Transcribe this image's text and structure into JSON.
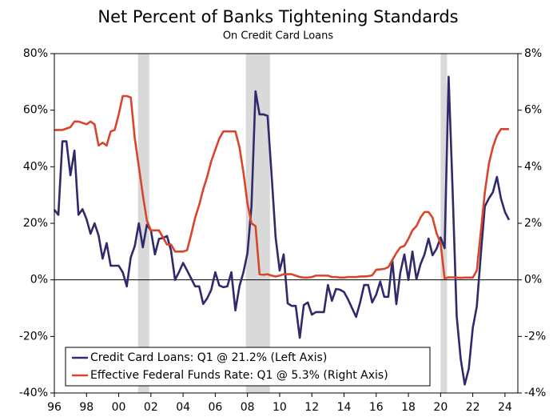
{
  "chart_data": {
    "type": "line",
    "title": "Net Percent of Banks Tightening Standards",
    "subtitle": "On Credit Card Loans",
    "x": [
      1996,
      1996.25,
      1996.5,
      1996.75,
      1997,
      1997.25,
      1997.5,
      1997.75,
      1998,
      1998.25,
      1998.5,
      1998.75,
      1999,
      1999.25,
      1999.5,
      1999.75,
      2000,
      2000.25,
      2000.5,
      2000.75,
      2001,
      2001.25,
      2001.5,
      2001.75,
      2002,
      2002.25,
      2002.5,
      2002.75,
      2003,
      2003.25,
      2003.5,
      2003.75,
      2004,
      2004.25,
      2004.5,
      2004.75,
      2005,
      2005.25,
      2005.5,
      2005.75,
      2006,
      2006.25,
      2006.5,
      2006.75,
      2007,
      2007.25,
      2007.5,
      2007.75,
      2008,
      2008.25,
      2008.5,
      2008.75,
      2009,
      2009.25,
      2009.5,
      2009.75,
      2010,
      2010.25,
      2010.5,
      2010.75,
      2011,
      2011.25,
      2011.5,
      2011.75,
      2012,
      2012.25,
      2012.5,
      2012.75,
      2013,
      2013.25,
      2013.5,
      2013.75,
      2014,
      2014.25,
      2014.5,
      2014.75,
      2015,
      2015.25,
      2015.5,
      2015.75,
      2016,
      2016.25,
      2016.5,
      2016.75,
      2017,
      2017.25,
      2017.5,
      2017.75,
      2018,
      2018.25,
      2018.5,
      2018.75,
      2019,
      2019.25,
      2019.5,
      2019.75,
      2020,
      2020.25,
      2020.5,
      2020.75,
      2021,
      2021.25,
      2021.5,
      2021.75,
      2022,
      2022.25,
      2022.5,
      2022.75,
      2023,
      2023.25,
      2023.5,
      2023.75,
      2024,
      2024.25
    ],
    "series": [
      {
        "name": "Credit Card Loans: Q1 @ 21.2% (Left Axis)",
        "color": "#2e2a6b",
        "axis": "y",
        "values": [
          24.8,
          23,
          49,
          49,
          37,
          45.7,
          23,
          25,
          21.5,
          16.3,
          20,
          15.7,
          7.5,
          13,
          5,
          5,
          5,
          2.7,
          -2.3,
          8,
          12,
          20,
          11.5,
          19.5,
          17.5,
          9,
          14.5,
          14.8,
          15.5,
          10.4,
          0,
          2.8,
          6,
          3.3,
          0.5,
          -2.3,
          -2.3,
          -8.5,
          -6.5,
          -3.5,
          2.7,
          -2,
          -2.6,
          -2.3,
          2.7,
          -10.8,
          -2.3,
          2.7,
          9.5,
          26,
          66.7,
          58.5,
          58.5,
          58,
          37,
          15,
          3.3,
          9,
          -8.3,
          -9.2,
          -9.2,
          -20.5,
          -8.9,
          -8,
          -12.3,
          -11.4,
          -11.4,
          -11.4,
          -1.8,
          -7.4,
          -3.2,
          -3.5,
          -4.3,
          -6.9,
          -10,
          -13.1,
          -8,
          -1.8,
          -1.8,
          -8,
          -5.2,
          -0.6,
          -6,
          -6,
          7,
          -8.6,
          2.7,
          9,
          0,
          10,
          0.2,
          5.5,
          9,
          14.6,
          8.7,
          11,
          15,
          11.2,
          71.8,
          31,
          -12.8,
          -28,
          -37,
          -31.5,
          -17,
          -9.4,
          9,
          26,
          28.8,
          31,
          36.4,
          28.8,
          24,
          21.2
        ]
      },
      {
        "name": "Effective Federal Funds Rate: Q1 @ 5.3% (Right Axis)",
        "color": "#d9442a",
        "axis": "y2",
        "values": [
          5.3,
          5.3,
          5.3,
          5.35,
          5.4,
          5.6,
          5.6,
          5.55,
          5.5,
          5.6,
          5.5,
          4.75,
          4.85,
          4.75,
          5.25,
          5.3,
          5.85,
          6.5,
          6.5,
          6.45,
          5.0,
          4.0,
          3.0,
          2.1,
          1.75,
          1.75,
          1.75,
          1.5,
          1.25,
          1.25,
          1.0,
          1.0,
          1.0,
          1.05,
          1.6,
          2.2,
          2.65,
          3.2,
          3.65,
          4.2,
          4.6,
          5.0,
          5.25,
          5.25,
          5.25,
          5.25,
          4.7,
          3.8,
          2.7,
          2.0,
          1.9,
          0.2,
          0.18,
          0.2,
          0.15,
          0.12,
          0.15,
          0.2,
          0.2,
          0.2,
          0.15,
          0.1,
          0.08,
          0.08,
          0.1,
          0.15,
          0.15,
          0.15,
          0.15,
          0.1,
          0.1,
          0.08,
          0.08,
          0.1,
          0.1,
          0.1,
          0.12,
          0.12,
          0.13,
          0.16,
          0.36,
          0.37,
          0.39,
          0.45,
          0.7,
          0.95,
          1.15,
          1.2,
          1.45,
          1.75,
          1.9,
          2.2,
          2.4,
          2.4,
          2.2,
          1.65,
          1.3,
          0.05,
          0.09,
          0.09,
          0.08,
          0.07,
          0.08,
          0.08,
          0.08,
          0.33,
          1.7,
          3.1,
          4.1,
          4.7,
          5.1,
          5.33,
          5.33,
          5.33
        ]
      }
    ],
    "recessions": [
      [
        2001.2,
        2001.9
      ],
      [
        2007.9,
        2009.4
      ],
      [
        2020.0,
        2020.4
      ]
    ],
    "recession_color": "#d9d9d9",
    "xlim": [
      1996,
      2024.8
    ],
    "xticks": [
      {
        "value": 1996,
        "label": "96"
      },
      {
        "value": 1998,
        "label": "98"
      },
      {
        "value": 2000,
        "label": "00"
      },
      {
        "value": 2002,
        "label": "02"
      },
      {
        "value": 2004,
        "label": "04"
      },
      {
        "value": 2006,
        "label": "06"
      },
      {
        "value": 2008,
        "label": "08"
      },
      {
        "value": 2010,
        "label": "10"
      },
      {
        "value": 2012,
        "label": "12"
      },
      {
        "value": 2014,
        "label": "14"
      },
      {
        "value": 2016,
        "label": "16"
      },
      {
        "value": 2018,
        "label": "18"
      },
      {
        "value": 2020,
        "label": "20"
      },
      {
        "value": 2022,
        "label": "22"
      },
      {
        "value": 2024,
        "label": "24"
      }
    ],
    "ylim": [
      -40,
      80
    ],
    "yticks": [
      {
        "value": -40,
        "label": "-40%"
      },
      {
        "value": -20,
        "label": "-20%"
      },
      {
        "value": 0,
        "label": "0%"
      },
      {
        "value": 20,
        "label": "20%"
      },
      {
        "value": 40,
        "label": "40%"
      },
      {
        "value": 60,
        "label": "60%"
      },
      {
        "value": 80,
        "label": "80%"
      }
    ],
    "y2lim": [
      -4,
      8
    ],
    "y2ticks": [
      {
        "value": -4,
        "label": "-4%"
      },
      {
        "value": -2,
        "label": "-2%"
      },
      {
        "value": 0,
        "label": "0%"
      },
      {
        "value": 2,
        "label": "2%"
      },
      {
        "value": 4,
        "label": "4%"
      },
      {
        "value": 6,
        "label": "6%"
      },
      {
        "value": 8,
        "label": "8%"
      }
    ],
    "zero_line": true,
    "legend": "lower left"
  }
}
